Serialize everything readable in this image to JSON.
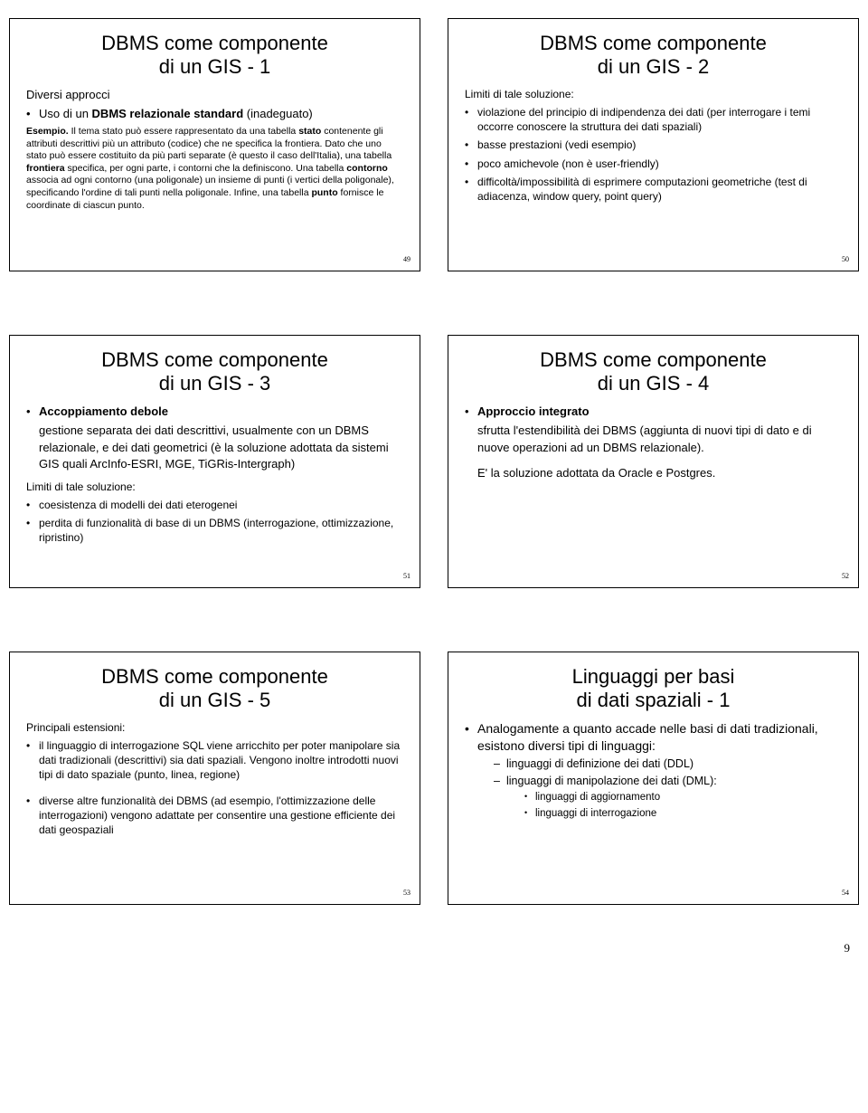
{
  "slides": [
    {
      "title": "DBMS come componente\ndi un GIS - 1",
      "intro": "Diversi approcci",
      "bullet1": "Uso di un <b>DBMS relazionale standard</b> (inadeguato)",
      "paraLabel": "<b>Esempio.</b> Il tema stato può essere rappresentato da una tabella <b>stato</b> contenente gli attributi descrittivi più un attributo (codice) che ne specifica la frontiera. Dato che uno stato può essere costituito da più parti separate (è questo il caso dell'Italia), una tabella <b>frontiera</b> specifica, per ogni parte, i contorni che la definiscono. Una tabella <b>contorno</b> associa ad ogni contorno (una poligonale) un insieme di punti (i vertici della poligonale), specificando l'ordine di tali punti nella poligonale. Infine, una tabella <b>punto</b> fornisce le coordinate di ciascun punto.",
      "pagenum": "49"
    },
    {
      "title": "DBMS come componente\ndi un GIS - 2",
      "intro": "Limiti di tale soluzione:",
      "bullets": [
        "violazione del principio di indipendenza dei dati (per interrogare i temi occorre conoscere la struttura dei dati spaziali)",
        "basse prestazioni (vedi esempio)",
        "poco amichevole (non è user-friendly)",
        "difficoltà/impossibilità di esprimere computazioni geometriche (test di adiacenza, window query, point query)"
      ],
      "pagenum": "50"
    },
    {
      "title": "DBMS come componente\ndi un GIS - 3",
      "bulletBold": "Accoppiamento debole",
      "indentText": "gestione separata dei dati descrittivi, usualmente con un DBMS relazionale, e dei dati geometrici (è la soluzione adottata da sistemi GIS quali ArcInfo-ESRI, MGE, TiGRis-Intergraph)",
      "intro2": "Limiti di tale soluzione:",
      "bullets2": [
        "coesistenza di modelli dei dati eterogenei",
        "perdita di funzionalità di base di un DBMS (interrogazione, ottimizzazione, ripristino)"
      ],
      "pagenum": "51"
    },
    {
      "title": "DBMS come componente\ndi un GIS - 4",
      "bulletBold": "Approccio integrato",
      "indentText": "sfrutta l'estendibilità dei DBMS (aggiunta di nuovi tipi di dato e di nuove operazioni ad un DBMS relazionale).",
      "indentText2": "E' la soluzione adottata da Oracle e Postgres.",
      "pagenum": "52"
    },
    {
      "title": "DBMS come componente\ndi un GIS - 5",
      "intro": "Principali estensioni:",
      "bullets": [
        "il linguaggio di interrogazione SQL viene arricchito per poter manipolare sia dati tradizionali (descrittivi) sia dati spaziali. Vengono inoltre introdotti nuovi tipi di dato spaziale (punto, linea, regione)",
        "diverse altre funzionalità dei DBMS (ad esempio, l'ottimizzazione delle interrogazioni) vengono adattate per consentire una gestione efficiente dei dati geospaziali"
      ],
      "pagenum": "53"
    },
    {
      "title": "Linguaggi per basi\ndi dati spaziali - 1",
      "mainBullet": "Analogamente a quanto accade nelle basi di dati tradizionali, esistono diversi tipi di linguaggi:",
      "subBullets": [
        "linguaggi di definizione dei dati (DDL)",
        "linguaggi di manipolazione dei dati (DML):"
      ],
      "subsubBullets": [
        "linguaggi di aggiornamento",
        "linguaggi di interrogazione"
      ],
      "pagenum": "54"
    }
  ],
  "pageNumber": "9"
}
